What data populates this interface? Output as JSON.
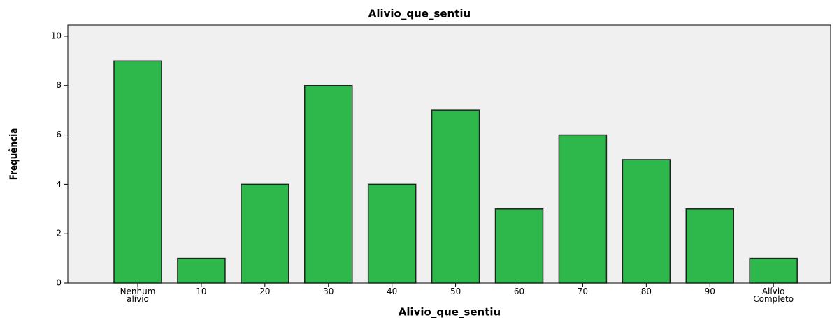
{
  "chart_data": {
    "type": "bar",
    "title": "Alivio_que_sentiu",
    "x_label": "Alivio_que_sentiu",
    "y_label": "Frequência",
    "categories": [
      "Nenhum alívio",
      "10",
      "20",
      "30",
      "40",
      "50",
      "60",
      "70",
      "80",
      "90",
      "Alívio Completo"
    ],
    "values": [
      9,
      1,
      4,
      8,
      4,
      7,
      3,
      6,
      5,
      3,
      1
    ],
    "color": "#2eb84b",
    "ylim": [
      0,
      10.45
    ],
    "yticks": [
      0,
      2,
      4,
      6,
      8,
      10
    ],
    "grid": false
  }
}
